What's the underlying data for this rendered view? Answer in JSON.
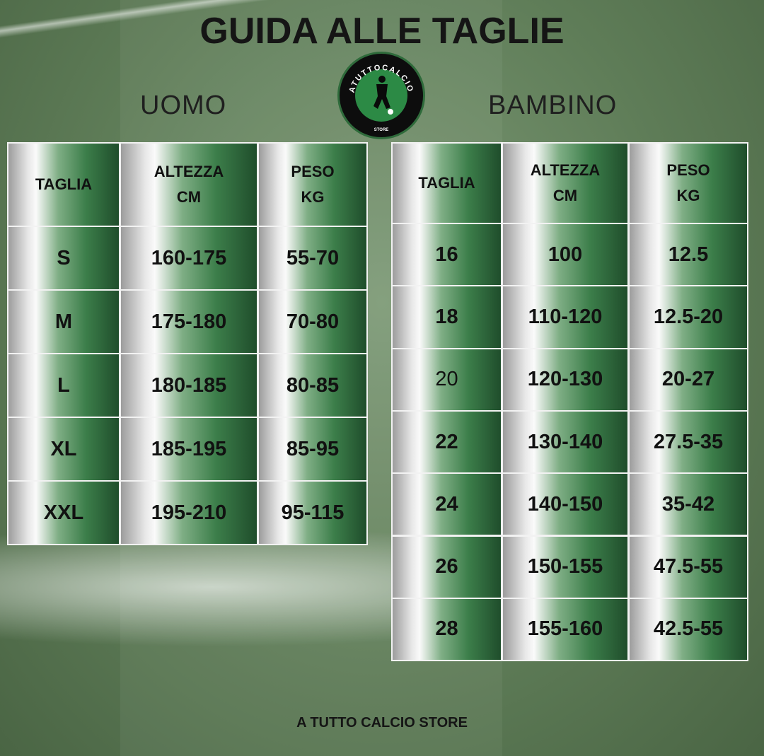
{
  "title": "GUIDA ALLE TAGLIE",
  "logo": {
    "text": "ATUTTOCALCIO",
    "subtext": "STORE"
  },
  "uomo": {
    "label": "UOMO",
    "headers": [
      "TAGLIA",
      "ALTEZZA\nCM",
      "PESO\nKG"
    ],
    "rows": [
      [
        "S",
        "160-175",
        "55-70"
      ],
      [
        "M",
        "175-180",
        "70-80"
      ],
      [
        "L",
        "180-185",
        "80-85"
      ],
      [
        "XL",
        "185-195",
        "85-95"
      ],
      [
        "XXL",
        "195-210",
        "95-115"
      ]
    ]
  },
  "bambino": {
    "label": "BAMBINO",
    "headers": [
      "TAGLIA",
      "ALTEZZA\nCM",
      "PESO\nKG"
    ],
    "rows": [
      [
        "16",
        "100",
        "12.5"
      ],
      [
        "18",
        "110-120",
        "12.5-20"
      ],
      [
        "20",
        "120-130",
        "20-27"
      ],
      [
        "22",
        "130-140",
        "27.5-35"
      ],
      [
        "24",
        "140-150",
        "35-42"
      ],
      [
        "26",
        "150-155",
        "47.5-55"
      ],
      [
        "28",
        "155-160",
        "42.5-55"
      ]
    ]
  },
  "footer": "A TUTTO CALCIO STORE",
  "colors": {
    "green_dark": "#1f4d2b",
    "green": "#3c7e4a",
    "silver": "#e8e8e8"
  }
}
